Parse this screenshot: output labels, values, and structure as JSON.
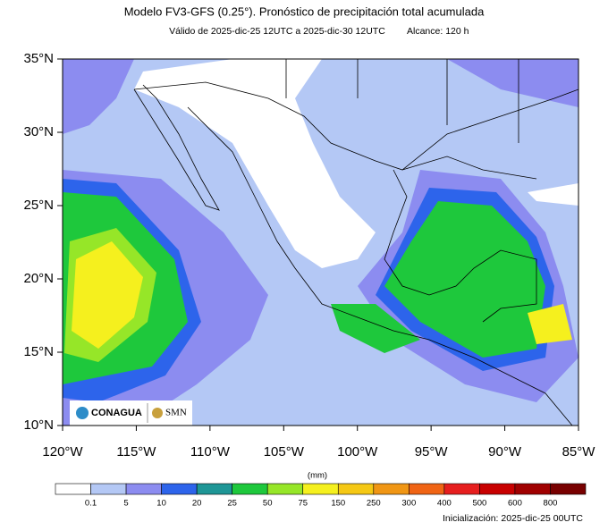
{
  "header": {
    "title": "Modelo FV3-GFS (0.25°). Pronóstico de precipitación total acumulada",
    "subtitle": "Válido de 2025-dic-25 12UTC a 2025-dic-30 12UTC",
    "range": "Alcance: 120 h"
  },
  "map": {
    "lat_labels": [
      "10°N",
      "15°N",
      "20°N",
      "25°N",
      "30°N",
      "35°N"
    ],
    "lon_labels": [
      "120°W",
      "115°W",
      "110°W",
      "105°W",
      "100°W",
      "95°W",
      "90°W",
      "85°W"
    ],
    "logos": [
      "CONAGUA",
      "SMN"
    ]
  },
  "legend": {
    "units": "(mm)",
    "labels": [
      "0.1",
      "5",
      "10",
      "20",
      "25",
      "50",
      "75",
      "150",
      "250",
      "300",
      "400",
      "500",
      "600",
      "800"
    ],
    "colors": [
      "#ffffff",
      "#b4c8f5",
      "#8c8cf0",
      "#2d64eb",
      "#1e9696",
      "#1ec83c",
      "#96e628",
      "#f5f01e",
      "#f5c814",
      "#f09614",
      "#f06414",
      "#e61e1e",
      "#c80000",
      "#a00000",
      "#780000"
    ]
  },
  "footer": {
    "init": "Inicialización: 2025-dic-25 00UTC"
  }
}
